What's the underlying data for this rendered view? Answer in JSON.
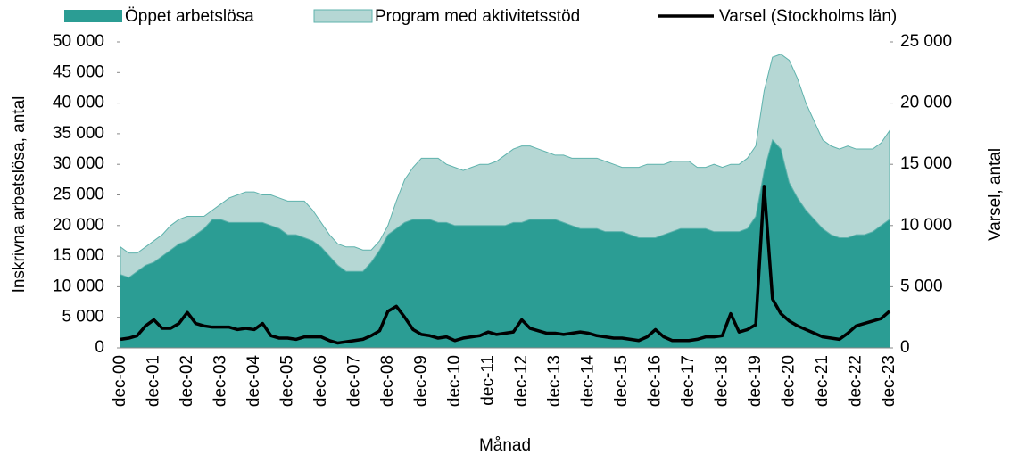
{
  "chart_data": {
    "type": "stacked_area_line",
    "x_label": "Månad",
    "y_label": "Inskrivna arbetslösa, antal",
    "y2_label": "Varsel, antal",
    "categories": [
      "dec-00",
      null,
      null,
      null,
      "dec-01",
      null,
      null,
      null,
      "dec-02",
      null,
      null,
      null,
      "dec-03",
      null,
      null,
      null,
      "dec-04",
      null,
      null,
      null,
      "dec-05",
      null,
      null,
      null,
      "dec-06",
      null,
      null,
      null,
      "dec-07",
      null,
      null,
      null,
      "dec-08",
      null,
      null,
      null,
      "dec-09",
      null,
      null,
      null,
      "dec-10",
      null,
      null,
      null,
      "dec-11",
      null,
      null,
      null,
      "dec-12",
      null,
      null,
      null,
      "dec-13",
      null,
      null,
      null,
      "dec-14",
      null,
      null,
      null,
      "dec-15",
      null,
      null,
      null,
      "dec-16",
      null,
      null,
      null,
      "dec-17",
      null,
      null,
      null,
      "dec-18",
      null,
      null,
      null,
      "dec-19",
      null,
      null,
      null,
      "dec-20",
      null,
      null,
      null,
      "dec-21",
      null,
      null,
      null,
      "dec-22",
      null,
      null,
      null,
      "dec-23"
    ],
    "series": [
      {
        "name": "Öppet arbetslösa",
        "color": "#2b9d94",
        "values": [
          12000,
          11500,
          12500,
          13500,
          14000,
          15000,
          16000,
          17000,
          17500,
          18500,
          19500,
          21000,
          21000,
          20500,
          20500,
          20500,
          20500,
          20500,
          20000,
          19500,
          18500,
          18500,
          18000,
          17500,
          16500,
          15000,
          13500,
          12500,
          12500,
          12500,
          14000,
          16000,
          18500,
          19500,
          20500,
          21000,
          21000,
          21000,
          20500,
          20500,
          20000,
          20000,
          20000,
          20000,
          20000,
          20000,
          20000,
          20500,
          20500,
          21000,
          21000,
          21000,
          21000,
          20500,
          20000,
          19500,
          19500,
          19500,
          19000,
          19000,
          19000,
          18500,
          18000,
          18000,
          18000,
          18500,
          19000,
          19500,
          19500,
          19500,
          19500,
          19000,
          19000,
          19000,
          19000,
          19500,
          21500,
          29000,
          34000,
          32500,
          27000,
          24500,
          22500,
          21000,
          19500,
          18500,
          18000,
          18000,
          18500,
          18500,
          19000,
          20000,
          21000
        ]
      },
      {
        "name": "Program med aktivitetsstöd",
        "color": "#b5d7d4",
        "values": [
          4500,
          4000,
          3000,
          3000,
          3500,
          3500,
          4000,
          4000,
          4000,
          3000,
          2000,
          1500,
          2500,
          4000,
          4500,
          5000,
          5000,
          4500,
          5000,
          5000,
          5500,
          5500,
          6000,
          5000,
          4000,
          3500,
          3500,
          4000,
          4000,
          3500,
          2000,
          1500,
          1500,
          4500,
          7000,
          8500,
          10000,
          10000,
          10500,
          9500,
          9500,
          9000,
          9500,
          10000,
          10000,
          10500,
          11500,
          12000,
          12500,
          12000,
          11500,
          11000,
          10500,
          11000,
          11000,
          11500,
          11500,
          11500,
          11500,
          11000,
          10500,
          11000,
          11500,
          12000,
          12000,
          11500,
          11500,
          11000,
          11000,
          10000,
          10000,
          11000,
          10500,
          11000,
          11000,
          11500,
          11500,
          13000,
          13500,
          15500,
          20000,
          19500,
          17500,
          16000,
          14500,
          14500,
          14500,
          15000,
          14000,
          14000,
          13500,
          13500,
          14500
        ]
      },
      {
        "name": "Varsel (Stockholms län)",
        "color": "#000000",
        "axis": "y2",
        "values": [
          700,
          800,
          1000,
          1800,
          2300,
          1600,
          1600,
          2000,
          2900,
          2000,
          1800,
          1700,
          1700,
          1700,
          1500,
          1600,
          1500,
          2000,
          1000,
          800,
          800,
          700,
          900,
          900,
          900,
          600,
          400,
          500,
          600,
          700,
          1000,
          1400,
          3000,
          3400,
          2500,
          1500,
          1100,
          1000,
          800,
          900,
          600,
          800,
          900,
          1000,
          1300,
          1100,
          1200,
          1300,
          2300,
          1600,
          1400,
          1200,
          1200,
          1100,
          1200,
          1300,
          1200,
          1000,
          900,
          800,
          800,
          700,
          600,
          900,
          1500,
          900,
          600,
          600,
          600,
          700,
          900,
          900,
          1000,
          2800,
          1300,
          1500,
          1900,
          13200,
          4000,
          2800,
          2200,
          1800,
          1500,
          1200,
          900,
          800,
          700,
          1200,
          1800,
          2000,
          2200,
          2400,
          3000
        ]
      }
    ],
    "ylim": [
      0,
      50000
    ],
    "yticks": [
      0,
      {
        "value": 5000,
        "label": "5 000"
      },
      {
        "value": 10000,
        "label": "10 000"
      },
      {
        "value": 15000,
        "label": "15 000"
      },
      {
        "value": 20000,
        "label": "20 000"
      },
      {
        "value": 25000,
        "label": "25 000"
      },
      {
        "value": 30000,
        "label": "30 000"
      },
      {
        "value": 35000,
        "label": "35 000"
      },
      {
        "value": 40000,
        "label": "40 000"
      },
      {
        "value": 45000,
        "label": "45 000"
      },
      {
        "value": 50000,
        "label": "50 000"
      }
    ],
    "y2lim": [
      0,
      25000
    ],
    "y2ticks": [
      0,
      {
        "value": 5000,
        "label": "5 000"
      },
      {
        "value": 10000,
        "label": "10 000"
      },
      {
        "value": 15000,
        "label": "15 000"
      },
      {
        "value": 20000,
        "label": "20 000"
      },
      {
        "value": 25000,
        "label": "25 000"
      }
    ],
    "legend": "top"
  }
}
